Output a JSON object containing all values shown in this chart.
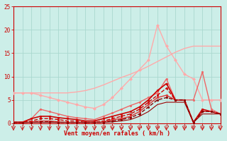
{
  "xlabel": "Vent moyen/en rafales ( km/h )",
  "xlim": [
    0,
    23
  ],
  "ylim": [
    0,
    25
  ],
  "yticks": [
    0,
    5,
    10,
    15,
    20,
    25
  ],
  "xticks": [
    0,
    1,
    2,
    3,
    4,
    5,
    6,
    7,
    8,
    9,
    10,
    11,
    12,
    13,
    14,
    15,
    16,
    17,
    18,
    19,
    20,
    21,
    22,
    23
  ],
  "background_color": "#cceee8",
  "grid_color": "#aad8d0",
  "series": [
    {
      "x": [
        0,
        1,
        2,
        3,
        4,
        5,
        6,
        7,
        8,
        9,
        10,
        11,
        12,
        13,
        14,
        15,
        16,
        17,
        18,
        19,
        20,
        21,
        22,
        23
      ],
      "y": [
        6.5,
        6.5,
        6.5,
        6.5,
        6.5,
        6.5,
        6.5,
        6.7,
        7.0,
        7.5,
        8.2,
        9.0,
        9.8,
        10.5,
        11.3,
        12.2,
        13.2,
        14.2,
        15.2,
        16.0,
        16.5,
        16.5,
        16.5,
        16.5
      ],
      "color": "#ffaaaa",
      "linewidth": 1.0,
      "marker": null,
      "linestyle": "-"
    },
    {
      "x": [
        0,
        1,
        2,
        3,
        4,
        5,
        6,
        7,
        8,
        9,
        10,
        11,
        12,
        13,
        14,
        15,
        16,
        17,
        18,
        19,
        20,
        21,
        22,
        23
      ],
      "y": [
        6.5,
        6.5,
        6.5,
        6.0,
        5.5,
        5.0,
        4.5,
        4.0,
        3.5,
        3.2,
        4.0,
        5.5,
        7.5,
        9.5,
        11.5,
        13.5,
        21.0,
        16.5,
        13.5,
        10.5,
        9.5,
        5.0,
        5.0,
        5.0
      ],
      "color": "#ffaaaa",
      "linewidth": 1.0,
      "marker": "D",
      "markersize": 2.0,
      "linestyle": "-"
    },
    {
      "x": [
        0,
        1,
        2,
        3,
        4,
        5,
        6,
        7,
        8,
        9,
        10,
        11,
        12,
        13,
        14,
        15,
        16,
        17,
        18,
        19,
        20,
        21,
        22,
        23
      ],
      "y": [
        0.3,
        0.3,
        1.0,
        3.0,
        2.5,
        2.0,
        1.5,
        1.2,
        1.0,
        0.8,
        1.5,
        2.2,
        3.0,
        3.8,
        4.5,
        5.5,
        6.5,
        9.5,
        5.0,
        5.0,
        5.0,
        11.0,
        3.0,
        2.0
      ],
      "color": "#ee6666",
      "linewidth": 1.0,
      "marker": "s",
      "markersize": 2.0,
      "linestyle": "-"
    },
    {
      "x": [
        0,
        1,
        2,
        3,
        4,
        5,
        6,
        7,
        8,
        9,
        10,
        11,
        12,
        13,
        14,
        15,
        16,
        17,
        18,
        19,
        20,
        21,
        22,
        23
      ],
      "y": [
        0.2,
        0.2,
        1.0,
        1.5,
        1.5,
        1.2,
        1.0,
        0.8,
        0.5,
        0.5,
        1.0,
        1.5,
        2.0,
        2.5,
        3.5,
        5.0,
        7.0,
        8.5,
        5.0,
        5.0,
        0.2,
        3.0,
        2.5,
        2.0
      ],
      "color": "#cc0000",
      "linewidth": 1.2,
      "marker": "s",
      "markersize": 2.0,
      "linestyle": "-"
    },
    {
      "x": [
        0,
        1,
        2,
        3,
        4,
        5,
        6,
        7,
        8,
        9,
        10,
        11,
        12,
        13,
        14,
        15,
        16,
        17,
        18,
        19,
        20,
        21,
        22,
        23
      ],
      "y": [
        0.2,
        0.2,
        0.5,
        1.0,
        1.0,
        0.8,
        0.5,
        0.5,
        0.2,
        0.2,
        0.5,
        1.0,
        1.5,
        2.0,
        3.0,
        4.5,
        6.0,
        7.5,
        5.0,
        5.0,
        0.2,
        2.5,
        2.5,
        2.0
      ],
      "color": "#cc0000",
      "linewidth": 1.0,
      "marker": "s",
      "markersize": 2.0,
      "linestyle": "--"
    },
    {
      "x": [
        0,
        1,
        2,
        3,
        4,
        5,
        6,
        7,
        8,
        9,
        10,
        11,
        12,
        13,
        14,
        15,
        16,
        17,
        18,
        19,
        20,
        21,
        22,
        23
      ],
      "y": [
        0.2,
        0.2,
        0.3,
        0.5,
        0.5,
        0.3,
        0.2,
        0.2,
        0.2,
        0.2,
        0.3,
        0.8,
        1.0,
        1.5,
        2.5,
        4.0,
        5.5,
        6.0,
        5.0,
        5.0,
        0.2,
        2.5,
        2.5,
        2.0
      ],
      "color": "#dd3333",
      "linewidth": 1.0,
      "marker": "s",
      "markersize": 1.8,
      "linestyle": "-"
    },
    {
      "x": [
        0,
        1,
        2,
        3,
        4,
        5,
        6,
        7,
        8,
        9,
        10,
        11,
        12,
        13,
        14,
        15,
        16,
        17,
        18,
        19,
        20,
        21,
        22,
        23
      ],
      "y": [
        0.2,
        0.2,
        0.2,
        0.3,
        0.3,
        0.2,
        0.2,
        0.2,
        0.2,
        0.2,
        0.2,
        0.5,
        0.8,
        1.2,
        2.0,
        3.5,
        5.0,
        5.5,
        5.0,
        5.0,
        0.2,
        2.5,
        2.5,
        2.0
      ],
      "color": "#880000",
      "linewidth": 1.0,
      "marker": "s",
      "markersize": 1.8,
      "linestyle": "--"
    },
    {
      "x": [
        0,
        1,
        2,
        3,
        4,
        5,
        6,
        7,
        8,
        9,
        10,
        11,
        12,
        13,
        14,
        15,
        16,
        17,
        18,
        19,
        20,
        21,
        22,
        23
      ],
      "y": [
        0.2,
        0.2,
        0.2,
        0.2,
        0.2,
        0.2,
        0.2,
        0.2,
        0.2,
        0.2,
        0.2,
        0.3,
        0.5,
        0.8,
        1.5,
        2.5,
        4.0,
        4.5,
        4.5,
        4.5,
        0.2,
        2.0,
        2.0,
        2.0
      ],
      "color": "#990000",
      "linewidth": 0.8,
      "marker": null,
      "linestyle": "-"
    }
  ]
}
